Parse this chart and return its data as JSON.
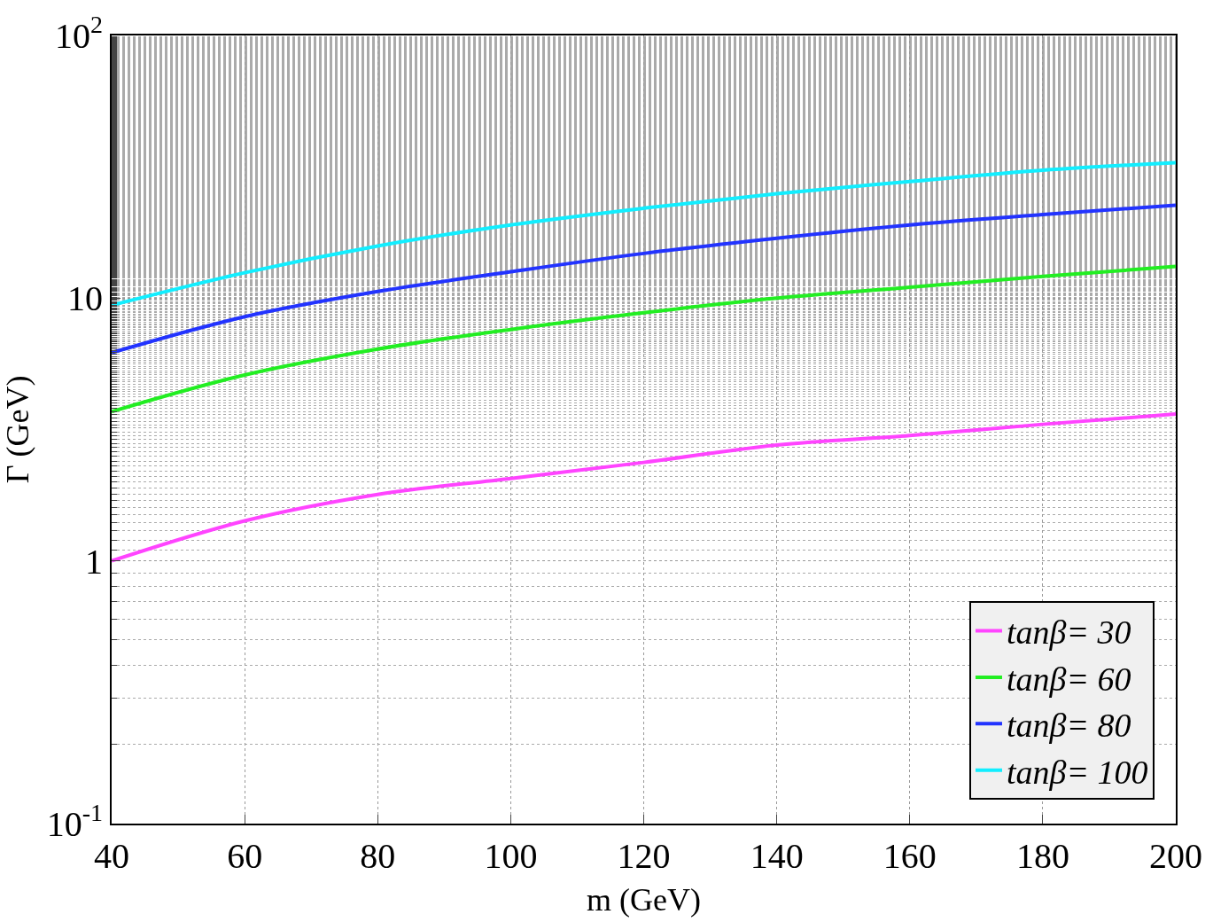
{
  "chart_data": {
    "type": "line",
    "xlabel": "m (GeV)",
    "ylabel": "Γ (GeV)",
    "x": [
      40,
      60,
      80,
      100,
      120,
      140,
      160,
      180,
      200
    ],
    "series": [
      {
        "name": "tanβ= 30",
        "color": "#ff44ff",
        "values": [
          1.0,
          1.42,
          1.79,
          2.06,
          2.37,
          2.76,
          3.0,
          3.31,
          3.62
        ]
      },
      {
        "name": "tanβ= 60",
        "color": "#22ee22",
        "values": [
          3.7,
          5.1,
          6.4,
          7.6,
          8.8,
          10,
          11.0,
          12.1,
          13.2
        ]
      },
      {
        "name": "tanβ= 80",
        "color": "#2233ff",
        "values": [
          6.2,
          8.5,
          10.6,
          12.6,
          14.8,
          16.9,
          19,
          20.8,
          22.6
        ]
      },
      {
        "name": "tanβ= 100",
        "color": "#11eeff",
        "values": [
          9.4,
          12.5,
          15.8,
          19,
          22,
          25,
          27.8,
          30.7,
          32.8
        ]
      }
    ],
    "log": true,
    "xlim": [
      40,
      200
    ],
    "xticks": [
      40,
      60,
      80,
      100,
      120,
      140,
      160,
      180,
      200
    ],
    "ylim": [
      0.1,
      100
    ],
    "yticks": [
      {
        "value": 0.1,
        "label": "10$^{-1}$"
      },
      {
        "value": 1,
        "label": "1"
      },
      {
        "value": 10,
        "label": "10"
      },
      {
        "value": 100,
        "label": "10$^{2}$"
      }
    ],
    "grid": true,
    "legend": "bottom right",
    "line_style": "solid",
    "marker": "none"
  }
}
